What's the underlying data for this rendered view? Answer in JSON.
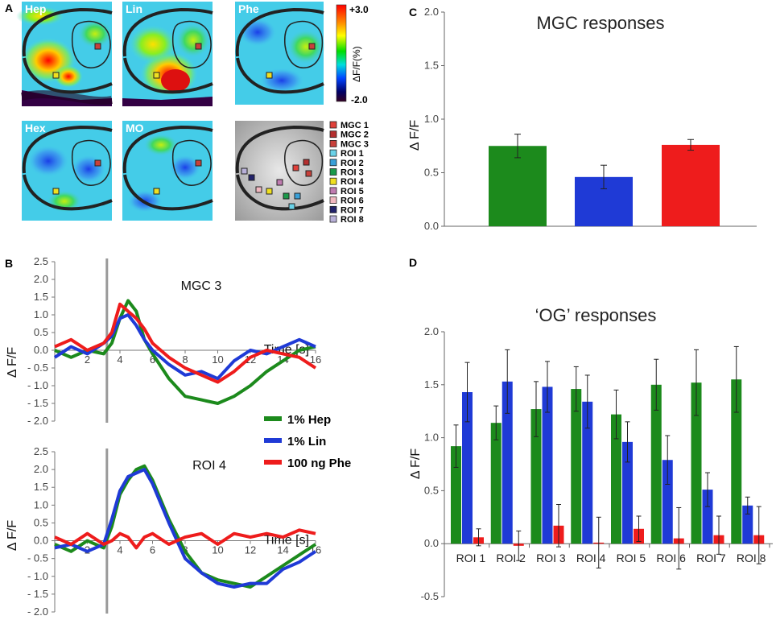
{
  "panel_letters": [
    "A",
    "B",
    "C",
    "D"
  ],
  "imaging": {
    "odor_labels": [
      "Hep",
      "Lin",
      "Phe",
      "Hex",
      "MO"
    ],
    "colorbar": {
      "top": "+3.0",
      "bottom": "-2.0",
      "label": "ΔF/F(%)",
      "colors": [
        "#ff0000",
        "#ff8800",
        "#ffff00",
        "#00dd00",
        "#00dddd",
        "#0044ff",
        "#000066",
        "#330022"
      ]
    },
    "legend": [
      {
        "name": "MGC 1",
        "color": "#e0403a"
      },
      {
        "name": "MGC 2",
        "color": "#b52f2f"
      },
      {
        "name": "MGC 3",
        "color": "#c8403a"
      },
      {
        "name": "ROI 1",
        "color": "#6ad2e8"
      },
      {
        "name": "ROI 2",
        "color": "#3aa0d8"
      },
      {
        "name": "ROI 3",
        "color": "#1b9a4a"
      },
      {
        "name": "ROI 4",
        "color": "#f0e020"
      },
      {
        "name": "ROI 5",
        "color": "#c07cb0"
      },
      {
        "name": "ROI 6",
        "color": "#f2b8c0"
      },
      {
        "name": "ROI 7",
        "color": "#22226a"
      },
      {
        "name": "ROI 8",
        "color": "#b8b0d8"
      }
    ]
  },
  "traces_legend": [
    {
      "name": "1% Hep",
      "color": "#1c8a1c"
    },
    {
      "name": "1% Lin",
      "color": "#1f3ad6"
    },
    {
      "name": "100 ng Phe",
      "color": "#ee1c1c"
    }
  ],
  "chart_data": [
    {
      "id": "C",
      "type": "bar",
      "title": "MGC responses",
      "ylabel": "Δ F/F",
      "xlabel": "",
      "categories": [
        "1% Hep",
        "1% Lin",
        "100 ng Phe"
      ],
      "values": [
        0.75,
        0.46,
        0.76
      ],
      "errors": [
        0.11,
        0.11,
        0.05
      ],
      "colors": [
        "#1c8a1c",
        "#1f3ad6",
        "#ee1c1c"
      ],
      "ylim": [
        0,
        2.0
      ],
      "yticks": [
        "0.0",
        "0.5",
        "1.0",
        "1.5",
        "2.0"
      ]
    },
    {
      "id": "D",
      "type": "bar",
      "title": "‘OG’ responses",
      "ylabel": "Δ F/F",
      "xlabel": "",
      "categories": [
        "ROI 1",
        "ROI 2",
        "ROI 3",
        "ROI 4",
        "ROI 5",
        "ROI 6",
        "ROI 7",
        "ROI 8"
      ],
      "series": [
        {
          "name": "1% Hep",
          "color": "#1c8a1c",
          "values": [
            0.92,
            1.14,
            1.27,
            1.46,
            1.22,
            1.5,
            1.52,
            1.55
          ],
          "errors": [
            0.2,
            0.16,
            0.26,
            0.21,
            0.23,
            0.24,
            0.31,
            0.31
          ]
        },
        {
          "name": "1% Lin",
          "color": "#1f3ad6",
          "values": [
            1.43,
            1.53,
            1.48,
            1.34,
            0.96,
            0.79,
            0.51,
            0.36
          ],
          "errors": [
            0.28,
            0.3,
            0.24,
            0.25,
            0.19,
            0.23,
            0.16,
            0.08
          ]
        },
        {
          "name": "100 ng Phe",
          "color": "#ee1c1c",
          "values": [
            0.06,
            -0.02,
            0.17,
            0.01,
            0.14,
            0.05,
            0.08,
            0.08
          ],
          "errors": [
            0.08,
            0.14,
            0.2,
            0.24,
            0.12,
            0.29,
            0.18,
            0.27
          ]
        }
      ],
      "ylim": [
        -0.5,
        2.0
      ],
      "yticks": [
        "-0.5",
        "0.0",
        "0.5",
        "1.0",
        "1.5",
        "2.0"
      ]
    },
    {
      "id": "B1",
      "type": "line",
      "title": "MGC 3",
      "ylabel": "Δ F/F",
      "xlabel": "Time [s]",
      "xlim": [
        0,
        16
      ],
      "ylim": [
        -2.0,
        2.5
      ],
      "xticks": [
        "2",
        "4",
        "6",
        "8",
        "10",
        "12",
        "14",
        "16"
      ],
      "yticks": [
        "2.5",
        "2.0",
        "1.5",
        "1.0",
        "0.5",
        "0.0",
        "- 0.5",
        "- 1.0",
        "- 1.5",
        "- 2.0"
      ],
      "stimulus_x": 3.2,
      "x": [
        0,
        1,
        2,
        3,
        3.5,
        4,
        4.5,
        5,
        5.5,
        6,
        7,
        8,
        9,
        10,
        11,
        12,
        13,
        14,
        15,
        16
      ],
      "series": [
        {
          "name": "1% Hep",
          "color": "#1c8a1c",
          "values": [
            0,
            -0.2,
            0,
            -0.1,
            0.2,
            0.9,
            1.4,
            1.1,
            0.3,
            -0.1,
            -0.8,
            -1.3,
            -1.4,
            -1.5,
            -1.3,
            -1.0,
            -0.6,
            -0.3,
            0,
            0.1
          ]
        },
        {
          "name": "1% Lin",
          "color": "#1f3ad6",
          "values": [
            -0.2,
            0.1,
            -0.1,
            0.2,
            0.4,
            0.9,
            1.0,
            0.7,
            0.3,
            0,
            -0.4,
            -0.7,
            -0.6,
            -0.8,
            -0.3,
            0,
            -0.1,
            0.1,
            0.3,
            0.1
          ]
        },
        {
          "name": "100 ng Phe",
          "color": "#ee1c1c",
          "values": [
            0.1,
            0.3,
            0,
            0.2,
            0.5,
            1.3,
            1.1,
            0.9,
            0.6,
            0.2,
            -0.2,
            -0.5,
            -0.7,
            -0.9,
            -0.6,
            -0.2,
            0,
            -0.1,
            -0.2,
            -0.5
          ]
        }
      ]
    },
    {
      "id": "B2",
      "type": "line",
      "title": "ROI 4",
      "ylabel": "Δ F/F",
      "xlabel": "Time [s]",
      "xlim": [
        0,
        16
      ],
      "ylim": [
        -2.0,
        2.5
      ],
      "xticks": [
        "2",
        "4",
        "6",
        "8",
        "10",
        "12",
        "14",
        "16"
      ],
      "yticks": [
        "2.5",
        "2.0",
        "1.5",
        "1.0",
        "0.5",
        "0.0",
        "- 0.5",
        "- 1.0",
        "- 1.5",
        "- 2.0"
      ],
      "stimulus_x": 3.2,
      "x": [
        0,
        1,
        2,
        3,
        3.5,
        4,
        4.5,
        5,
        5.5,
        6,
        7,
        8,
        9,
        10,
        11,
        12,
        13,
        14,
        15,
        16
      ],
      "series": [
        {
          "name": "1% Hep",
          "color": "#1c8a1c",
          "values": [
            -0.1,
            -0.3,
            0,
            -0.2,
            0.4,
            1.3,
            1.7,
            2.0,
            2.1,
            1.7,
            0.6,
            -0.3,
            -0.9,
            -1.1,
            -1.2,
            -1.3,
            -1.0,
            -0.7,
            -0.4,
            -0.1
          ]
        },
        {
          "name": "1% Lin",
          "color": "#1f3ad6",
          "values": [
            -0.2,
            -0.1,
            -0.3,
            -0.1,
            0.6,
            1.4,
            1.8,
            1.9,
            2.0,
            1.6,
            0.5,
            -0.5,
            -0.9,
            -1.2,
            -1.3,
            -1.2,
            -1.2,
            -0.8,
            -0.6,
            -0.3
          ]
        },
        {
          "name": "100 ng Phe",
          "color": "#ee1c1c",
          "values": [
            0.1,
            -0.1,
            0.2,
            -0.1,
            0,
            0.2,
            0.1,
            -0.2,
            0.1,
            0.2,
            -0.1,
            0.1,
            0.2,
            -0.1,
            0.2,
            0.1,
            0.2,
            0.1,
            0.3,
            0.2
          ]
        }
      ]
    }
  ]
}
